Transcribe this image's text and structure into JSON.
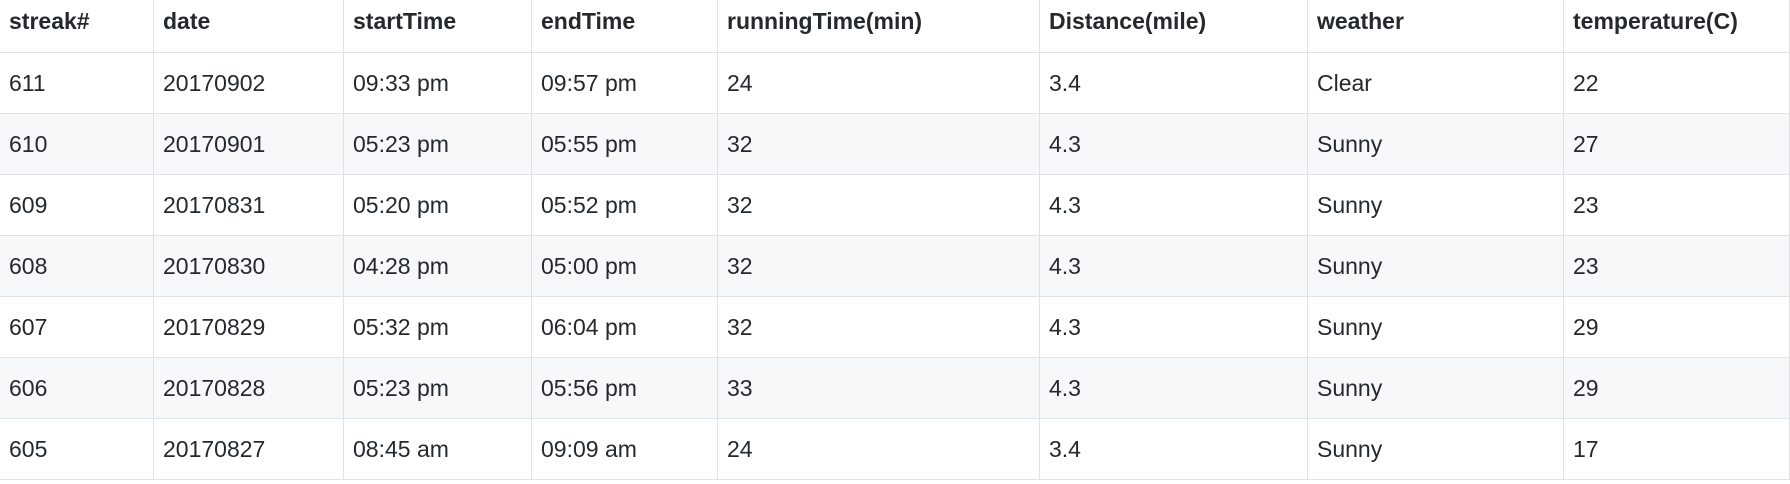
{
  "table": {
    "columns": [
      "streak#",
      "date",
      "startTime",
      "endTime",
      "runningTime(min)",
      "Distance(mile)",
      "weather",
      "temperature(C)"
    ],
    "rows": [
      [
        "611",
        "20170902",
        "09:33 pm",
        "09:57 pm",
        "24",
        "3.4",
        "Clear",
        "22"
      ],
      [
        "610",
        "20170901",
        "05:23 pm",
        "05:55 pm",
        "32",
        "4.3",
        "Sunny",
        "27"
      ],
      [
        "609",
        "20170831",
        "05:20 pm",
        "05:52 pm",
        "32",
        "4.3",
        "Sunny",
        "23"
      ],
      [
        "608",
        "20170830",
        "04:28 pm",
        "05:00 pm",
        "32",
        "4.3",
        "Sunny",
        "23"
      ],
      [
        "607",
        "20170829",
        "05:32 pm",
        "06:04 pm",
        "32",
        "4.3",
        "Sunny",
        "29"
      ],
      [
        "606",
        "20170828",
        "05:23 pm",
        "05:56 pm",
        "33",
        "4.3",
        "Sunny",
        "29"
      ],
      [
        "605",
        "20170827",
        "08:45 am",
        "09:09 am",
        "24",
        "3.4",
        "Sunny",
        "17"
      ]
    ]
  }
}
